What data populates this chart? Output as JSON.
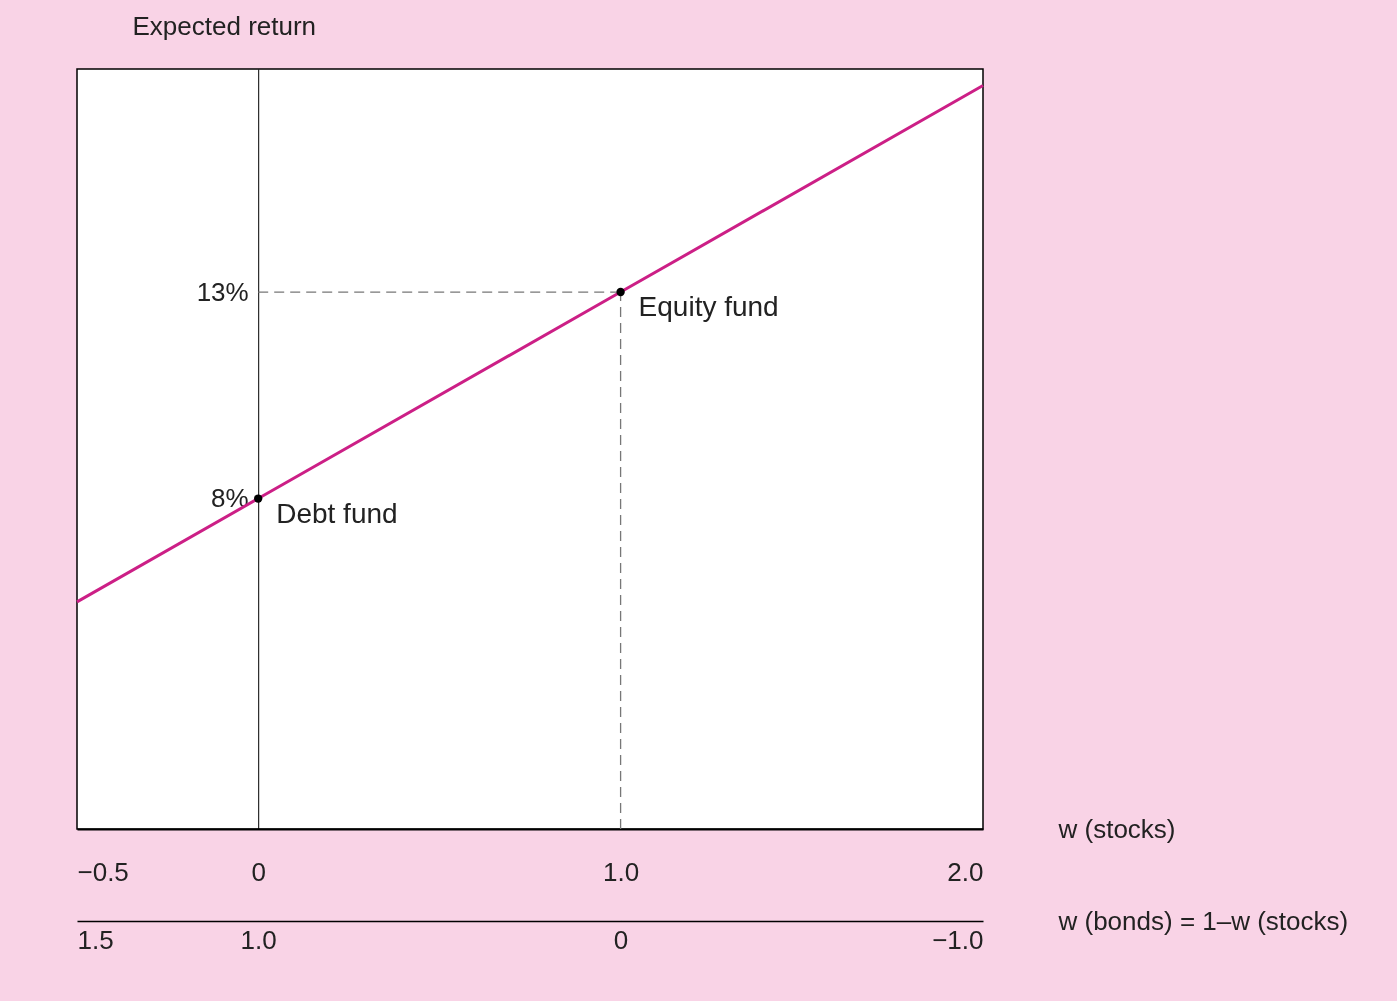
{
  "chart_data": {
    "type": "line",
    "ylabel": "Expected return",
    "xlabel": "w (stocks)",
    "x2label": "w (bonds) = 1–w (stocks)",
    "xlim": [
      -0.5,
      2.0
    ],
    "xticks": [
      {
        "value": -0.5,
        "label": "−0.5"
      },
      0,
      {
        "value": 1,
        "label": "1.0"
      },
      {
        "value": 2,
        "label": "2.0"
      }
    ],
    "x2lim": [
      1.5,
      -1.0
    ],
    "x2ticks": [
      1.5,
      {
        "value": 1,
        "label": "1.0"
      },
      0,
      {
        "value": -1,
        "label": "−1.0"
      }
    ],
    "ylim": [
      0,
      18.4
    ],
    "yticks": [
      {
        "value": 8,
        "label": "8%"
      },
      {
        "value": 13,
        "label": "13%"
      }
    ],
    "series": [
      {
        "type": "line",
        "color": "#cc1f86",
        "x": [
          -0.5,
          0,
          1,
          2
        ],
        "values": [
          5.5,
          8,
          13,
          18
        ]
      },
      {
        "type": "scatter",
        "color": "#000000",
        "x": [
          0,
          1
        ],
        "values": [
          8,
          13
        ]
      }
    ],
    "ref_lines": [
      {
        "axis": "y",
        "value": 13,
        "line_style": "dashed",
        "color": "#777777"
      },
      {
        "axis": "x",
        "value": 1,
        "line_style": "dashed",
        "color": "#777777"
      }
    ],
    "annotations": [
      {
        "text": "Debt fund",
        "x": 0,
        "y": 8
      },
      {
        "text": "Equity fund",
        "x": 1,
        "y": 13
      }
    ],
    "grid": false
  }
}
